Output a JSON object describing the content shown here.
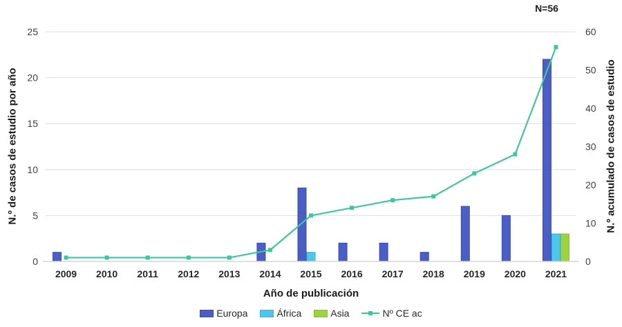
{
  "chart_data": {
    "type": "bar",
    "subtype": "grouped-bars-with-cumulative-line",
    "title": "",
    "annotation": "N=56",
    "categories": [
      "2009",
      "2010",
      "2011",
      "2012",
      "2013",
      "2014",
      "2015",
      "2016",
      "2017",
      "2018",
      "2019",
      "2020",
      "2021"
    ],
    "series": [
      {
        "name": "Europa",
        "type": "bar",
        "axis": "left",
        "color": "#4A5EC5",
        "border": "#3A4DB2",
        "values": [
          1,
          0,
          0,
          0,
          0,
          2,
          8,
          2,
          2,
          1,
          6,
          5,
          22
        ]
      },
      {
        "name": "África",
        "type": "bar",
        "axis": "left",
        "color": "#4EC5EC",
        "border": "#35B3DC",
        "values": [
          0,
          0,
          0,
          0,
          0,
          0,
          1,
          0,
          0,
          0,
          0,
          0,
          3
        ]
      },
      {
        "name": "Asia",
        "type": "bar",
        "axis": "left",
        "color": "#9DD43D",
        "border": "#87C22B",
        "values": [
          0,
          0,
          0,
          0,
          0,
          0,
          0,
          0,
          0,
          0,
          0,
          0,
          3
        ]
      },
      {
        "name": "Nº CE ac",
        "type": "line",
        "axis": "right",
        "color": "#3EC79E",
        "values": [
          1,
          1,
          1,
          1,
          1,
          3,
          12,
          14,
          16,
          17,
          23,
          28,
          56
        ]
      }
    ],
    "x_axis": {
      "label": "Año de publicación"
    },
    "left_axis": {
      "label": "N.º de casos de estudio por año",
      "ticks": [
        0,
        5,
        10,
        15,
        20,
        25
      ],
      "range": [
        0,
        25
      ]
    },
    "right_axis": {
      "label": "N.º  acumulado de casos de estudio",
      "ticks": [
        0,
        10,
        20,
        30,
        40,
        50,
        60
      ],
      "range": [
        0,
        60
      ]
    },
    "grid": true,
    "legend_position": "bottom",
    "colors": {
      "gridline": "#DEDEDE",
      "axis_line": "#D6D6D6",
      "tick_text": "#404040",
      "category_text": "#262626",
      "background": "#FFFFFF"
    }
  }
}
